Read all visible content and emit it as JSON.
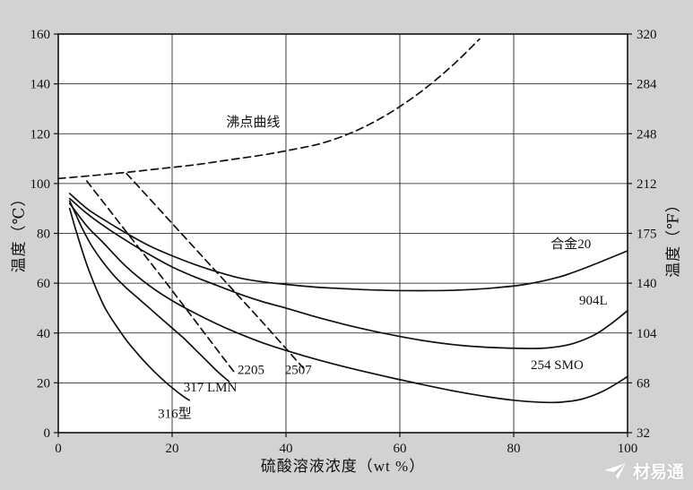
{
  "page": {
    "background": "#d2d2d2",
    "plot_background": "#ffffff",
    "line_color": "#111111",
    "watermark": {
      "text": "材易通",
      "icon": "paper-plane-icon"
    }
  },
  "chart_data": {
    "type": "line",
    "title": "",
    "xlabel": "硫酸溶液浓度（wt %）",
    "ylabel_left": "温度（℃）",
    "ylabel_right": "温度（℉）",
    "xlim": [
      0,
      100
    ],
    "ylim": [
      0,
      160
    ],
    "x_ticks": [
      0,
      20,
      40,
      60,
      80,
      100
    ],
    "y_ticks_left": [
      0,
      20,
      40,
      60,
      80,
      100,
      120,
      140,
      160
    ],
    "y_ticks_right": [
      "32",
      "68",
      "104",
      "140",
      "175",
      "212",
      "248",
      "284",
      "320"
    ],
    "grid": true,
    "legend_position": "inline-labels",
    "series": [
      {
        "name": "沸点曲线",
        "dash": true,
        "label": {
          "x": 29.5,
          "y": 123,
          "anchor": "start"
        },
        "points": [
          [
            0,
            102
          ],
          [
            6,
            103.2
          ],
          [
            12,
            104.5
          ],
          [
            18,
            106
          ],
          [
            24,
            107.5
          ],
          [
            30,
            109.5
          ],
          [
            36,
            111.5
          ],
          [
            42,
            114
          ],
          [
            46,
            116
          ],
          [
            50,
            119
          ],
          [
            54,
            123
          ],
          [
            58,
            128
          ],
          [
            62,
            134
          ],
          [
            66,
            141
          ],
          [
            70,
            149
          ],
          [
            74,
            158
          ]
        ]
      },
      {
        "name": "合金20",
        "dash": false,
        "label": {
          "x": 86.5,
          "y": 74,
          "anchor": "start"
        },
        "points": [
          [
            2,
            96
          ],
          [
            5,
            90
          ],
          [
            8,
            85.5
          ],
          [
            12,
            80
          ],
          [
            16,
            75
          ],
          [
            20,
            71
          ],
          [
            24,
            67.5
          ],
          [
            28,
            64.5
          ],
          [
            32,
            62
          ],
          [
            36,
            60.5
          ],
          [
            40,
            59.5
          ],
          [
            46,
            58.3
          ],
          [
            52,
            57.6
          ],
          [
            58,
            57.1
          ],
          [
            64,
            57
          ],
          [
            70,
            57.2
          ],
          [
            76,
            58
          ],
          [
            82,
            59.5
          ],
          [
            88,
            62.5
          ],
          [
            93,
            66.5
          ],
          [
            100,
            73
          ]
        ]
      },
      {
        "name": "904L",
        "dash": false,
        "label": {
          "x": 91.5,
          "y": 51.5,
          "anchor": "start"
        },
        "points": [
          [
            2,
            94
          ],
          [
            5,
            88
          ],
          [
            8,
            83
          ],
          [
            12,
            77
          ],
          [
            16,
            71.5
          ],
          [
            20,
            66.5
          ],
          [
            24,
            62.5
          ],
          [
            28,
            59
          ],
          [
            32,
            55.5
          ],
          [
            36,
            52.5
          ],
          [
            40,
            50
          ],
          [
            46,
            46
          ],
          [
            52,
            42.5
          ],
          [
            58,
            39.5
          ],
          [
            64,
            37
          ],
          [
            70,
            35.2
          ],
          [
            76,
            34.2
          ],
          [
            82,
            33.8
          ],
          [
            86,
            34
          ],
          [
            90,
            35.5
          ],
          [
            94,
            39
          ],
          [
            97,
            43.5
          ],
          [
            100,
            49
          ]
        ]
      },
      {
        "name": "254 SMO",
        "dash": false,
        "label": {
          "x": 83,
          "y": 25.5,
          "anchor": "start"
        },
        "points": [
          [
            2,
            92
          ],
          [
            5,
            83
          ],
          [
            8,
            76
          ],
          [
            12,
            66.5
          ],
          [
            16,
            59
          ],
          [
            20,
            53
          ],
          [
            24,
            48
          ],
          [
            28,
            43.5
          ],
          [
            32,
            39.5
          ],
          [
            36,
            36
          ],
          [
            40,
            33
          ],
          [
            46,
            29
          ],
          [
            52,
            25.5
          ],
          [
            58,
            22.3
          ],
          [
            64,
            19.3
          ],
          [
            70,
            16.5
          ],
          [
            76,
            14.2
          ],
          [
            80,
            13
          ],
          [
            84,
            12.3
          ],
          [
            88,
            12.2
          ],
          [
            92,
            13.5
          ],
          [
            96,
            17
          ],
          [
            100,
            22.5
          ]
        ]
      },
      {
        "name": "317 LMN",
        "dash": false,
        "label": {
          "x": 22,
          "y": 16.5,
          "anchor": "start"
        },
        "points": [
          [
            2,
            93
          ],
          [
            3,
            88
          ],
          [
            4,
            83
          ],
          [
            5,
            78.5
          ],
          [
            6,
            74.5
          ],
          [
            8,
            68
          ],
          [
            10,
            62.5
          ],
          [
            12,
            58
          ],
          [
            14,
            54
          ],
          [
            16,
            50
          ],
          [
            18,
            46
          ],
          [
            20,
            42
          ],
          [
            22,
            38
          ],
          [
            24,
            33.5
          ],
          [
            26,
            29
          ],
          [
            28,
            24.5
          ],
          [
            30,
            20.5
          ]
        ]
      },
      {
        "name": "316型",
        "dash": false,
        "label": {
          "x": 17.5,
          "y": 6,
          "anchor": "start"
        },
        "points": [
          [
            2,
            90
          ],
          [
            3,
            82
          ],
          [
            4,
            74.5
          ],
          [
            5,
            67.5
          ],
          [
            6,
            61.5
          ],
          [
            7,
            56
          ],
          [
            8,
            51
          ],
          [
            9,
            47
          ],
          [
            10,
            43.5
          ],
          [
            12,
            37
          ],
          [
            14,
            31.5
          ],
          [
            16,
            26.5
          ],
          [
            18,
            22
          ],
          [
            20,
            18
          ],
          [
            22,
            14.5
          ],
          [
            23,
            13
          ]
        ]
      },
      {
        "name": "2205",
        "dash": true,
        "label": {
          "x": 31.5,
          "y": 23.5,
          "anchor": "start"
        },
        "points": [
          [
            5,
            101
          ],
          [
            12,
            80.5
          ],
          [
            19,
            60
          ],
          [
            25,
            42
          ],
          [
            31,
            24
          ]
        ]
      },
      {
        "name": "2507",
        "dash": true,
        "label": {
          "x": 39.8,
          "y": 23.5,
          "anchor": "start"
        },
        "points": [
          [
            12,
            104
          ],
          [
            20,
            84
          ],
          [
            28,
            64
          ],
          [
            36,
            44
          ],
          [
            43,
            26
          ]
        ]
      }
    ]
  }
}
